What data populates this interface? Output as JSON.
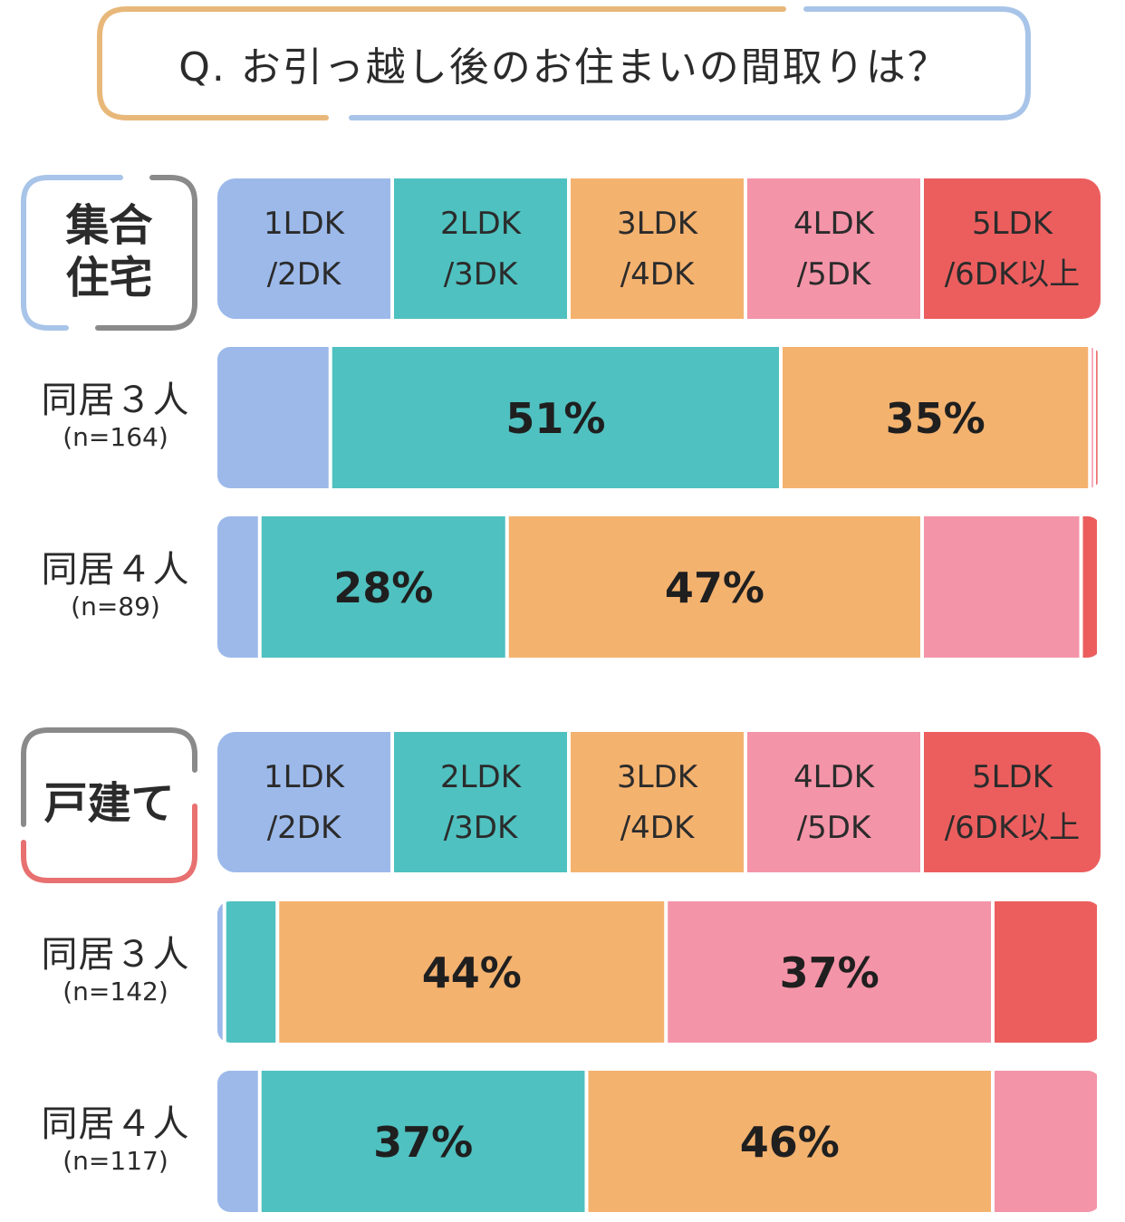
{
  "title": "Q. お引っ越し後のお住まいの間取りは？",
  "colors": {
    "title_border_left": "#e8b87a",
    "title_border_right": "#a8c4e8",
    "cat1": "#9cb9ea",
    "cat2": "#4fc1c0",
    "cat3": "#f4b26f",
    "cat4": "#f494a8",
    "cat5": "#ec5e5e",
    "badge_apartment_blue": "#a8c4e8",
    "badge_gray": "#8a8a8a",
    "badge_house_red": "#e87070"
  },
  "legend": [
    {
      "line1": "1LDK",
      "line2": "/2DK"
    },
    {
      "line1": "2LDK",
      "line2": "/3DK"
    },
    {
      "line1": "3LDK",
      "line2": "/4DK"
    },
    {
      "line1": "4LDK",
      "line2": "/5DK"
    },
    {
      "line1": "5LDK",
      "line2": "/6DK以上"
    }
  ],
  "sections": [
    {
      "badge_line1": "集合",
      "badge_line2": "住宅"
    },
    {
      "badge_line1": "戸建て",
      "badge_line2": ""
    }
  ],
  "rows": [
    {
      "label": "同居３人",
      "n": "(n=164)"
    },
    {
      "label": "同居４人",
      "n": "(n=89)"
    },
    {
      "label": "同居３人",
      "n": "(n=142)"
    },
    {
      "label": "同居４人",
      "n": "(n=117)"
    }
  ],
  "chart_data": {
    "type": "bar",
    "stacked": true,
    "unit": "%",
    "categories": [
      "1LDK/2DK",
      "2LDK/3DK",
      "3LDK/4DK",
      "4LDK/5DK",
      "5LDK/6DK以上"
    ],
    "groups": [
      {
        "name": "集合住宅",
        "bars": [
          {
            "label": "同居３人",
            "n": "(n=164)",
            "values": [
              13,
              51,
              35,
              0.5,
              0.5
            ],
            "labels": [
              "",
              "51%",
              "35%",
              "",
              ""
            ]
          },
          {
            "label": "同居４人",
            "n": "(n=89)",
            "values": [
              5,
              28,
              47,
              18,
              2
            ],
            "labels": [
              "",
              "28%",
              "47%",
              "",
              ""
            ]
          }
        ]
      },
      {
        "name": "戸建て",
        "bars": [
          {
            "label": "同居３人",
            "n": "(n=142)",
            "values": [
              1,
              6,
              44,
              37,
              12
            ],
            "labels": [
              "",
              "",
              "44%",
              "37%",
              ""
            ]
          },
          {
            "label": "同居４人",
            "n": "(n=117)",
            "values": [
              5,
              37,
              46,
              12,
              0
            ],
            "labels": [
              "",
              "37%",
              "46%",
              "",
              ""
            ],
            "segment_order": [
              1,
              2,
              3,
              4,
              5
            ]
          }
        ]
      }
    ]
  }
}
